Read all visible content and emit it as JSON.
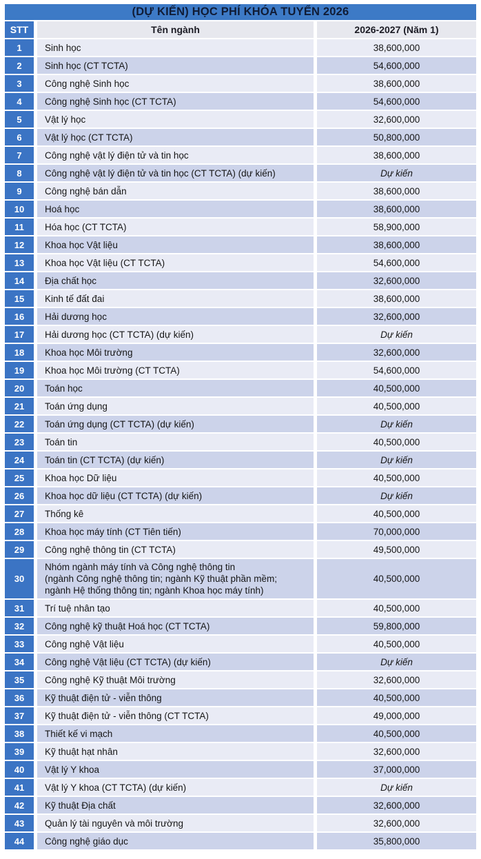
{
  "title": "(DỰ KIẾN) HỌC PHÍ KHÓA TUYỂN 2026",
  "columns": {
    "stt": "STT",
    "name": "Tên ngành",
    "value": "2026-2027 (Năm 1)"
  },
  "colors": {
    "title-bar": "#3D7AC6",
    "stt-cell": "#3B74C4",
    "row-odd": "#E9EBF5",
    "row-even": "#CCD3EA",
    "header-cell": "#E7E8EE"
  },
  "rows": [
    {
      "stt": "1",
      "name": "Sinh học",
      "value": "38,600,000"
    },
    {
      "stt": "2",
      "name": "Sinh học (CT TCTA)",
      "value": "54,600,000"
    },
    {
      "stt": "3",
      "name": "Công nghệ Sinh học",
      "value": "38,600,000"
    },
    {
      "stt": "4",
      "name": "Công nghệ Sinh học (CT TCTA)",
      "value": "54,600,000"
    },
    {
      "stt": "5",
      "name": "Vật lý học",
      "value": "32,600,000"
    },
    {
      "stt": "6",
      "name": "Vật lý học (CT TCTA)",
      "value": "50,800,000"
    },
    {
      "stt": "7",
      "name": "Công nghệ vật lý điện tử và tin học",
      "value": "38,600,000"
    },
    {
      "stt": "8",
      "name": "Công nghệ vật lý điện tử và tin học (CT TCTA) (dự kiến)",
      "value": "Dự kiến"
    },
    {
      "stt": "9",
      "name": "Công nghệ bán dẫn",
      "value": "38,600,000"
    },
    {
      "stt": "10",
      "name": "Hoá học",
      "value": "38,600,000"
    },
    {
      "stt": "11",
      "name": "Hóa học (CT TCTA)",
      "value": "58,900,000"
    },
    {
      "stt": "12",
      "name": "Khoa học Vật liệu",
      "value": "38,600,000"
    },
    {
      "stt": "13",
      "name": "Khoa học Vật liệu (CT TCTA)",
      "value": "54,600,000"
    },
    {
      "stt": "14",
      "name": "Địa chất học",
      "value": "32,600,000"
    },
    {
      "stt": "15",
      "name": "Kinh tế đất đai",
      "value": "38,600,000"
    },
    {
      "stt": "16",
      "name": "Hải dương học",
      "value": "32,600,000"
    },
    {
      "stt": "17",
      "name": "Hải dương học (CT TCTA) (dự kiến)",
      "value": "Dự kiến"
    },
    {
      "stt": "18",
      "name": "Khoa học Môi trường",
      "value": "32,600,000"
    },
    {
      "stt": "19",
      "name": "Khoa học Môi trường (CT TCTA)",
      "value": "54,600,000"
    },
    {
      "stt": "20",
      "name": "Toán học",
      "value": "40,500,000"
    },
    {
      "stt": "21",
      "name": "Toán ứng dụng",
      "value": "40,500,000"
    },
    {
      "stt": "22",
      "name": "Toán ứng dụng (CT TCTA) (dự kiến)",
      "value": "Dự kiến"
    },
    {
      "stt": "23",
      "name": "Toán tin",
      "value": "40,500,000"
    },
    {
      "stt": "24",
      "name": "Toán tin (CT TCTA) (dự kiến)",
      "value": "Dự kiến"
    },
    {
      "stt": "25",
      "name": "Khoa học Dữ liệu",
      "value": "40,500,000"
    },
    {
      "stt": "26",
      "name": "Khoa học dữ liệu (CT TCTA) (dự kiến)",
      "value": "Dự kiến"
    },
    {
      "stt": "27",
      "name": "Thống kê",
      "value": "40,500,000"
    },
    {
      "stt": "28",
      "name": "Khoa học máy tính (CT Tiên tiến)",
      "value": "70,000,000"
    },
    {
      "stt": "29",
      "name": "Công nghệ thông tin (CT TCTA)",
      "value": "49,500,000"
    },
    {
      "stt": "30",
      "name": "Nhóm ngành máy tính và Công nghệ thông tin\n(ngành Công nghệ thông tin; ngành Kỹ thuật phần mềm;\nngành Hệ thống thông tin; ngành Khoa học máy tính)",
      "value": "40,500,000"
    },
    {
      "stt": "31",
      "name": "Trí tuệ nhân tạo",
      "value": "40,500,000"
    },
    {
      "stt": "32",
      "name": "Công nghệ kỹ thuật Hoá học (CT TCTA)",
      "value": "59,800,000"
    },
    {
      "stt": "33",
      "name": "Công nghệ Vật liệu",
      "value": "40,500,000"
    },
    {
      "stt": "34",
      "name": "Công nghệ Vật liệu (CT TCTA) (dự kiến)",
      "value": "Dự kiến"
    },
    {
      "stt": "35",
      "name": "Công nghệ Kỹ thuật Môi trường",
      "value": "32,600,000"
    },
    {
      "stt": "36",
      "name": "Kỹ thuật điện tử - viễn thông",
      "value": "40,500,000"
    },
    {
      "stt": "37",
      "name": "Kỹ thuật điện tử - viễn thông (CT TCTA)",
      "value": "49,000,000"
    },
    {
      "stt": "38",
      "name": "Thiết kế vi mạch",
      "value": "40,500,000"
    },
    {
      "stt": "39",
      "name": "Kỹ thuật hạt nhân",
      "value": "32,600,000"
    },
    {
      "stt": "40",
      "name": "Vật lý Y khoa",
      "value": "37,000,000"
    },
    {
      "stt": "41",
      "name": "Vật lý Y khoa (CT TCTA) (dự kiến)",
      "value": "Dự kiến"
    },
    {
      "stt": "42",
      "name": "Kỹ thuật Địa chất",
      "value": "32,600,000"
    },
    {
      "stt": "43",
      "name": "Quản lý tài nguyên và môi trường",
      "value": "32,600,000"
    },
    {
      "stt": "44",
      "name": "Công nghệ giáo dục",
      "value": "35,800,000"
    }
  ]
}
